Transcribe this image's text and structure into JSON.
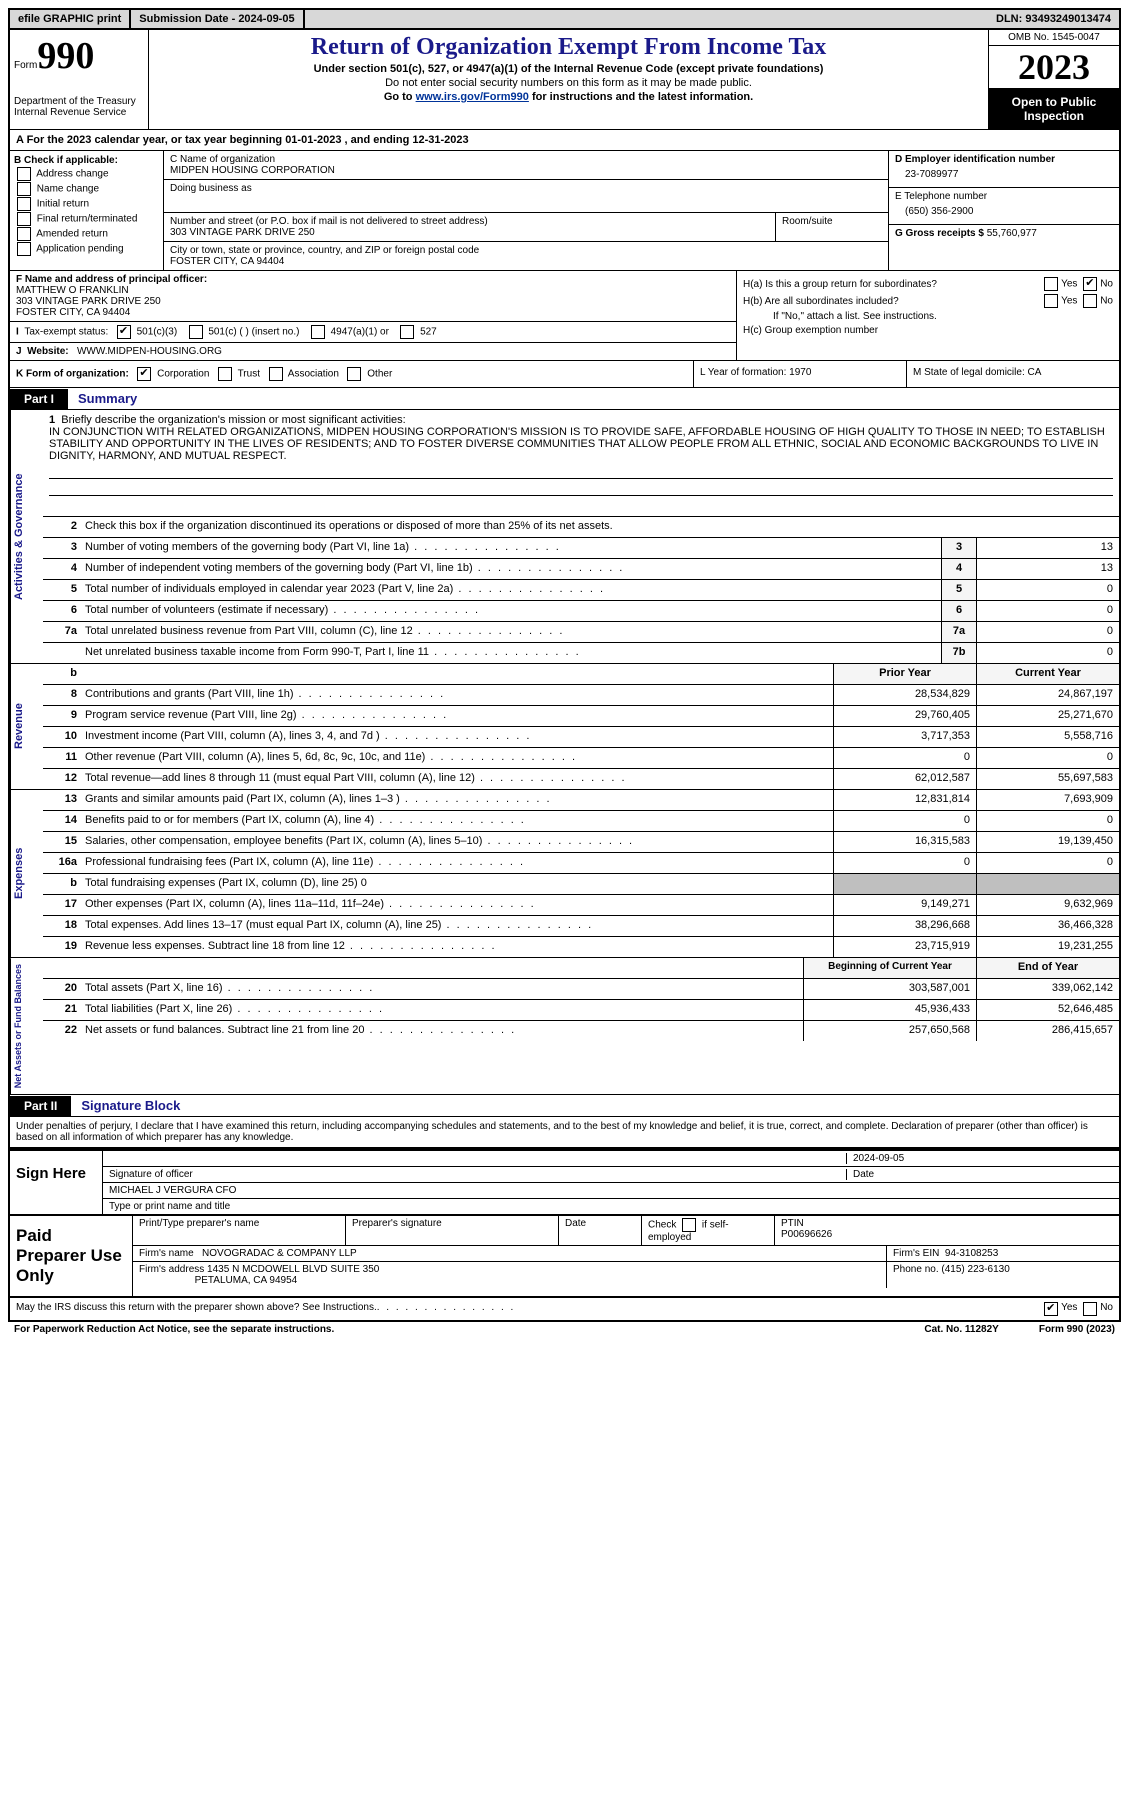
{
  "header_bar": {
    "efile": "efile GRAPHIC print",
    "submission_label": "Submission Date - 2024-09-05",
    "dln": "DLN: 93493249013474"
  },
  "title_block": {
    "form_label": "Form",
    "form_number": "990",
    "dept": "Department of the Treasury Internal Revenue Service",
    "title": "Return of Organization Exempt From Income Tax",
    "sub1": "Under section 501(c), 527, or 4947(a)(1) of the Internal Revenue Code (except private foundations)",
    "sub2": "Do not enter social security numbers on this form as it may be made public.",
    "sub3_prefix": "Go to ",
    "sub3_link": "www.irs.gov/Form990",
    "sub3_suffix": " for instructions and the latest information.",
    "omb": "OMB No. 1545-0047",
    "year": "2023",
    "open": "Open to Public Inspection"
  },
  "row_a": "A For the 2023 calendar year, or tax year beginning 01-01-2023   , and ending 12-31-2023",
  "col_b": {
    "header": "B Check if applicable:",
    "items": [
      "Address change",
      "Name change",
      "Initial return",
      "Final return/terminated",
      "Amended return",
      "Application pending"
    ]
  },
  "col_c": {
    "name_label": "C Name of organization",
    "name": "MIDPEN HOUSING CORPORATION",
    "dba_label": "Doing business as",
    "addr_label": "Number and street (or P.O. box if mail is not delivered to street address)",
    "room_label": "Room/suite",
    "addr": "303 VINTAGE PARK DRIVE 250",
    "city_label": "City or town, state or province, country, and ZIP or foreign postal code",
    "city": "FOSTER CITY, CA  94404"
  },
  "col_d": {
    "ein_label": "D Employer identification number",
    "ein": "23-7089977",
    "phone_label": "E Telephone number",
    "phone": "(650) 356-2900",
    "gross_label": "G Gross receipts $",
    "gross": "55,760,977"
  },
  "fgh": {
    "f_label": "F Name and address of principal officer:",
    "f_name": "MATTHEW O FRANKLIN",
    "f_addr1": "303 VINTAGE PARK DRIVE 250",
    "f_addr2": "FOSTER CITY, CA  94404",
    "i_label": "Tax-exempt status:",
    "i_501c3": "501(c)(3)",
    "i_501c": "501(c) (  ) (insert no.)",
    "i_4947": "4947(a)(1) or",
    "i_527": "527",
    "j_label": "Website:",
    "j_val": "WWW.MIDPEN-HOUSING.ORG",
    "ha": "H(a)  Is this a group return for subordinates?",
    "hb": "H(b)  Are all subordinates included?",
    "hb_note": "If \"No,\" attach a list. See instructions.",
    "hc": "H(c)  Group exemption number",
    "yes": "Yes",
    "no": "No"
  },
  "klm": {
    "k_label": "K Form of organization:",
    "k_opts": [
      "Corporation",
      "Trust",
      "Association",
      "Other"
    ],
    "l": "L Year of formation: 1970",
    "m": "M State of legal domicile: CA"
  },
  "part1": {
    "tag": "Part I",
    "title": "Summary"
  },
  "gov": {
    "label": "Activities & Governance",
    "l1_label": "Briefly describe the organization's mission or most significant activities:",
    "l1_text": "IN CONJUNCTION WITH RELATED ORGANIZATIONS, MIDPEN HOUSING CORPORATION'S MISSION IS TO PROVIDE SAFE, AFFORDABLE HOUSING OF HIGH QUALITY TO THOSE IN NEED; TO ESTABLISH STABILITY AND OPPORTUNITY IN THE LIVES OF RESIDENTS; AND TO FOSTER DIVERSE COMMUNITIES THAT ALLOW PEOPLE FROM ALL ETHNIC, SOCIAL AND ECONOMIC BACKGROUNDS TO LIVE IN DIGNITY, HARMONY, AND MUTUAL RESPECT.",
    "l2": "Check this box         if the organization discontinued its operations or disposed of more than 25% of its net assets.",
    "rows": [
      {
        "n": "3",
        "d": "Number of voting members of the governing body (Part VI, line 1a)",
        "box": "3",
        "v": "13"
      },
      {
        "n": "4",
        "d": "Number of independent voting members of the governing body (Part VI, line 1b)",
        "box": "4",
        "v": "13"
      },
      {
        "n": "5",
        "d": "Total number of individuals employed in calendar year 2023 (Part V, line 2a)",
        "box": "5",
        "v": "0"
      },
      {
        "n": "6",
        "d": "Total number of volunteers (estimate if necessary)",
        "box": "6",
        "v": "0"
      },
      {
        "n": "7a",
        "d": "Total unrelated business revenue from Part VIII, column (C), line 12",
        "box": "7a",
        "v": "0"
      },
      {
        "n": "",
        "d": "Net unrelated business taxable income from Form 990-T, Part I, line 11",
        "box": "7b",
        "v": "0"
      }
    ]
  },
  "rev": {
    "label": "Revenue",
    "hdr_prior": "Prior Year",
    "hdr_curr": "Current Year",
    "rows": [
      {
        "n": "8",
        "d": "Contributions and grants (Part VIII, line 1h)",
        "p": "28,534,829",
        "c": "24,867,197"
      },
      {
        "n": "9",
        "d": "Program service revenue (Part VIII, line 2g)",
        "p": "29,760,405",
        "c": "25,271,670"
      },
      {
        "n": "10",
        "d": "Investment income (Part VIII, column (A), lines 3, 4, and 7d )",
        "p": "3,717,353",
        "c": "5,558,716"
      },
      {
        "n": "11",
        "d": "Other revenue (Part VIII, column (A), lines 5, 6d, 8c, 9c, 10c, and 11e)",
        "p": "0",
        "c": "0"
      },
      {
        "n": "12",
        "d": "Total revenue—add lines 8 through 11 (must equal Part VIII, column (A), line 12)",
        "p": "62,012,587",
        "c": "55,697,583"
      }
    ]
  },
  "exp": {
    "label": "Expenses",
    "rows": [
      {
        "n": "13",
        "d": "Grants and similar amounts paid (Part IX, column (A), lines 1–3 )",
        "p": "12,831,814",
        "c": "7,693,909"
      },
      {
        "n": "14",
        "d": "Benefits paid to or for members (Part IX, column (A), line 4)",
        "p": "0",
        "c": "0"
      },
      {
        "n": "15",
        "d": "Salaries, other compensation, employee benefits (Part IX, column (A), lines 5–10)",
        "p": "16,315,583",
        "c": "19,139,450"
      },
      {
        "n": "16a",
        "d": "Professional fundraising fees (Part IX, column (A), line 11e)",
        "p": "0",
        "c": "0"
      },
      {
        "n": "b",
        "d": "Total fundraising expenses (Part IX, column (D), line 25) 0",
        "p": "",
        "c": "",
        "gray": true
      },
      {
        "n": "17",
        "d": "Other expenses (Part IX, column (A), lines 11a–11d, 11f–24e)",
        "p": "9,149,271",
        "c": "9,632,969"
      },
      {
        "n": "18",
        "d": "Total expenses. Add lines 13–17 (must equal Part IX, column (A), line 25)",
        "p": "38,296,668",
        "c": "36,466,328"
      },
      {
        "n": "19",
        "d": "Revenue less expenses. Subtract line 18 from line 12",
        "p": "23,715,919",
        "c": "19,231,255"
      }
    ]
  },
  "net": {
    "label": "Net Assets or Fund Balances",
    "hdr_beg": "Beginning of Current Year",
    "hdr_end": "End of Year",
    "rows": [
      {
        "n": "20",
        "d": "Total assets (Part X, line 16)",
        "p": "303,587,001",
        "c": "339,062,142"
      },
      {
        "n": "21",
        "d": "Total liabilities (Part X, line 26)",
        "p": "45,936,433",
        "c": "52,646,485"
      },
      {
        "n": "22",
        "d": "Net assets or fund balances. Subtract line 21 from line 20",
        "p": "257,650,568",
        "c": "286,415,657"
      }
    ]
  },
  "part2": {
    "tag": "Part II",
    "title": "Signature Block",
    "penalty": "Under penalties of perjury, I declare that I have examined this return, including accompanying schedules and statements, and to the best of my knowledge and belief, it is true, correct, and complete. Declaration of preparer (other than officer) is based on all information of which preparer has any knowledge."
  },
  "sign": {
    "left": "Sign Here",
    "date": "2024-09-05",
    "sig_label": "Signature of officer",
    "date_label": "Date",
    "name": "MICHAEL J VERGURA  CFO",
    "name_label": "Type or print name and title"
  },
  "prep": {
    "left": "Paid Preparer Use Only",
    "h1": "Print/Type preparer's name",
    "h2": "Preparer's signature",
    "h3": "Date",
    "h4_a": "Check",
    "h4_b": "if self-employed",
    "h5": "PTIN",
    "ptin": "P00696626",
    "firm_label": "Firm's name",
    "firm": "NOVOGRADAC & COMPANY LLP",
    "ein_label": "Firm's EIN",
    "ein": "94-3108253",
    "addr_label": "Firm's address",
    "addr1": "1435 N MCDOWELL BLVD SUITE 350",
    "addr2": "PETALUMA, CA  94954",
    "phone_label": "Phone no.",
    "phone": "(415) 223-6130"
  },
  "footer": {
    "discuss": "May the IRS discuss this return with the preparer shown above? See Instructions.",
    "yes": "Yes",
    "no": "No",
    "pra": "For Paperwork Reduction Act Notice, see the separate instructions.",
    "cat": "Cat. No. 11282Y",
    "form": "Form 990 (2023)"
  }
}
